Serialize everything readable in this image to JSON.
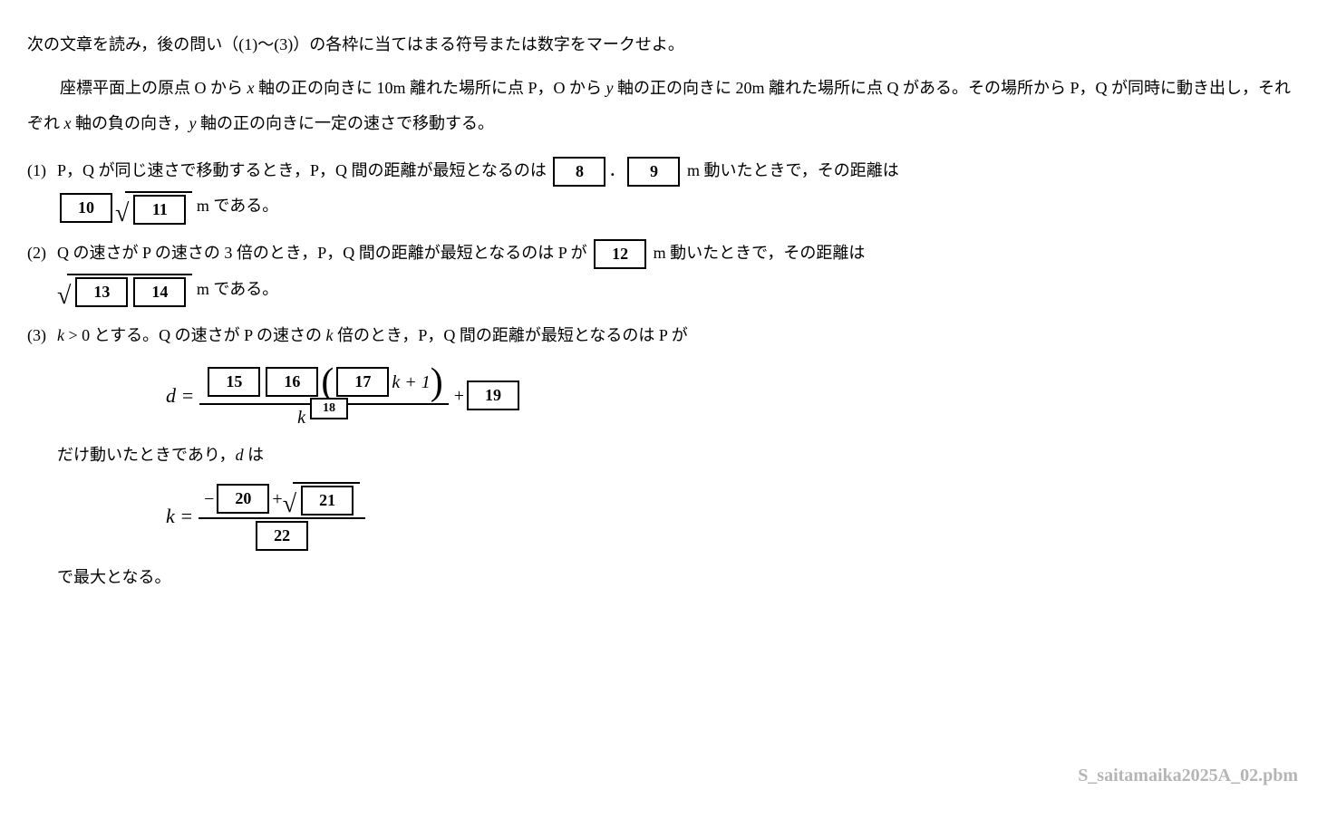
{
  "intro": {
    "line1": "次の文章を読み，後の問い（(1)～(3)）の各枠に当てはまる符号または数字をマークせよ。",
    "line2_a": "座標平面上の原点 O から ",
    "line2_b": " 軸の正の向きに 10m 離れた場所に点 P，O から ",
    "line2_c": " 軸の正の向きに 20m 離れた場所に点 Q がある。その場所から P，Q が同時に動き出し，それぞれ ",
    "line2_d": " 軸の負の向き，",
    "line2_e": " 軸の正の向きに一定の速さで移動する。"
  },
  "q1": {
    "num": "(1)",
    "text_a": "P，Q が同じ速さで移動するとき，P，Q 間の距離が最短となるのは ",
    "text_b": " m 動いたときで，その距離は ",
    "text_c": " m である。",
    "box8": "8",
    "dot": "．",
    "box9": "9",
    "box10": "10",
    "box11": "11"
  },
  "q2": {
    "num": "(2)",
    "text_a": "Q の速さが P の速さの 3 倍のとき，P，Q 間の距離が最短となるのは P が ",
    "text_b": " m 動いたときで，その距離は ",
    "text_c": " m である。",
    "box12": "12",
    "box13": "13",
    "box14": "14"
  },
  "q3": {
    "num": "(3)",
    "text_a_1": " > 0 とする。Q の速さが P の速さの ",
    "text_a_2": " 倍のとき，P，Q 間の距離が最短となるのは P が",
    "text_b": "だけ動いたときであり，",
    "text_b2": " は",
    "text_c": "で最大となる。",
    "d_eq": "d = ",
    "k_eq": "k = ",
    "plus": " + ",
    "minus": "− ",
    "k_plus_1": " k + 1",
    "k_caret": "k",
    "box15": "15",
    "box16": "16",
    "box17": "17",
    "box18": "18",
    "box19": "19",
    "box20": "20",
    "box21": "21",
    "box22": "22"
  },
  "vars": {
    "x": "x",
    "y": "y",
    "k": "k",
    "d": "d"
  },
  "watermark": "S_saitamaika2025A_02.pbm"
}
